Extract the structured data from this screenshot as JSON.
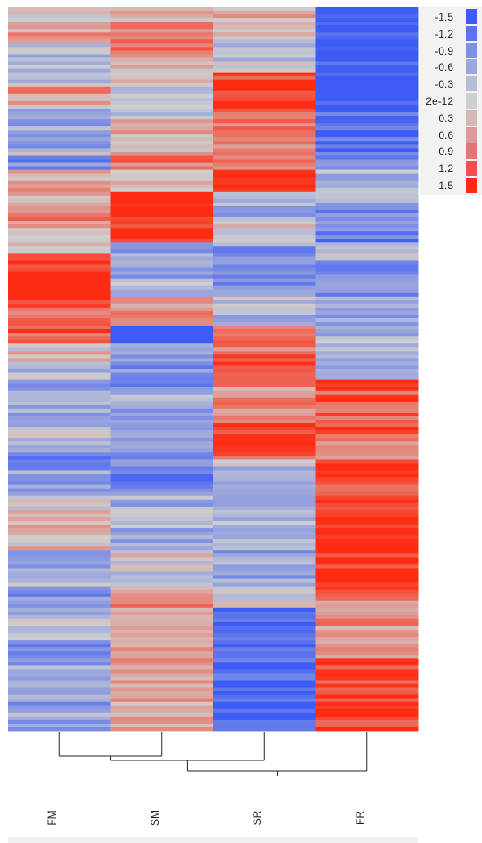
{
  "chart_data": {
    "type": "heatmap",
    "columns": [
      "FM",
      "SM",
      "SR",
      "FR"
    ],
    "color_scale": {
      "min": -1.5,
      "max": 1.5,
      "low_color": "#3d5cf5",
      "mid_color": "#cfcfcf",
      "high_color": "#ff2b12",
      "legend_labels": [
        "-1.5",
        "-1.2",
        "-0.9",
        "-0.6",
        "-0.3",
        "2e-12",
        "0.3",
        "0.6",
        "0.9",
        "1.2",
        "1.5"
      ],
      "legend_colors": [
        "#3d5cf5",
        "#5a74ef",
        "#7d90e6",
        "#9aa7dd",
        "#b6bdd7",
        "#cfcfcf",
        "#d6b6b6",
        "#dd9999",
        "#e57575",
        "#f05050",
        "#ff2b12"
      ]
    },
    "row_count": 200,
    "segments": {
      "FM": [
        [
          0,
          0.2
        ],
        [
          0.08,
          0.5
        ],
        [
          0.2,
          -0.2
        ],
        [
          0.42,
          0.5
        ],
        [
          0.5,
          0.2
        ],
        [
          0.55,
          -0.6
        ],
        [
          0.8,
          0.3
        ],
        [
          0.82,
          -0.9
        ],
        [
          0.9,
          0.2
        ],
        [
          0.95,
          0.5
        ],
        [
          1.02,
          0.4
        ],
        [
          1.1,
          0.9
        ],
        [
          1.18,
          0.2
        ],
        [
          1.25,
          0.0
        ],
        [
          1.35,
          1.4
        ],
        [
          1.45,
          1.6
        ],
        [
          1.55,
          1.5
        ],
        [
          1.65,
          0.9
        ],
        [
          1.75,
          1.1
        ],
        [
          1.85,
          0.1
        ],
        [
          1.95,
          -0.3
        ],
        [
          2.05,
          -0.5
        ],
        [
          2.25,
          -0.2
        ],
        [
          2.45,
          -0.9
        ],
        [
          2.55,
          -0.5
        ],
        [
          2.7,
          0.2
        ],
        [
          3.0,
          -0.4
        ],
        [
          3.2,
          -0.8
        ],
        [
          3.35,
          -0.3
        ],
        [
          3.5,
          -1.2
        ],
        [
          3.6,
          -0.6
        ],
        [
          4.0,
          -0.3
        ]
      ],
      "SM": [
        [
          0,
          0.5
        ],
        [
          0.1,
          0.9
        ],
        [
          0.25,
          0.2
        ],
        [
          0.4,
          0.0
        ],
        [
          0.6,
          0.3
        ],
        [
          0.8,
          0.9
        ],
        [
          0.9,
          0.2
        ],
        [
          1.02,
          1.5
        ],
        [
          1.1,
          1.6
        ],
        [
          1.2,
          1.4
        ],
        [
          1.3,
          -0.6
        ],
        [
          1.5,
          -0.4
        ],
        [
          1.6,
          0.6
        ],
        [
          1.75,
          -1.6
        ],
        [
          1.85,
          -0.8
        ],
        [
          2.1,
          -0.5
        ],
        [
          2.4,
          -0.6
        ],
        [
          2.55,
          -1.0
        ],
        [
          2.7,
          -0.4
        ],
        [
          3.0,
          0.0
        ],
        [
          3.2,
          0.6
        ],
        [
          3.5,
          0.4
        ],
        [
          4.0,
          -0.2
        ]
      ],
      "SR": [
        [
          0,
          0.4
        ],
        [
          0.15,
          -0.1
        ],
        [
          0.35,
          1.3
        ],
        [
          0.55,
          0.8
        ],
        [
          0.8,
          1.0
        ],
        [
          0.92,
          1.6
        ],
        [
          1.02,
          -0.4
        ],
        [
          1.2,
          0.2
        ],
        [
          1.3,
          -0.7
        ],
        [
          1.6,
          -0.3
        ],
        [
          1.75,
          0.7
        ],
        [
          1.9,
          1.2
        ],
        [
          2.05,
          0.6
        ],
        [
          2.3,
          1.2
        ],
        [
          2.5,
          -0.3
        ],
        [
          2.75,
          -0.2
        ],
        [
          3.0,
          -0.6
        ],
        [
          3.2,
          0.1
        ],
        [
          3.32,
          -1.4
        ],
        [
          4.0,
          -1.0
        ]
      ],
      "FR": [
        [
          0,
          -1.5
        ],
        [
          0.5,
          -1.3
        ],
        [
          0.8,
          -0.8
        ],
        [
          0.9,
          -0.4
        ],
        [
          1.1,
          -1.0
        ],
        [
          1.3,
          -0.2
        ],
        [
          1.4,
          -0.8
        ],
        [
          1.6,
          -0.6
        ],
        [
          1.8,
          -0.4
        ],
        [
          2.05,
          1.1
        ],
        [
          2.4,
          0.6
        ],
        [
          2.5,
          1.6
        ],
        [
          2.6,
          1.1
        ],
        [
          2.7,
          1.5
        ],
        [
          3.0,
          1.4
        ],
        [
          3.25,
          0.6
        ],
        [
          3.6,
          1.3
        ],
        [
          4.0,
          1.0
        ]
      ]
    },
    "column_order_tree": [
      [
        "FM",
        "SM"
      ],
      [
        "SR",
        "FR"
      ]
    ]
  }
}
